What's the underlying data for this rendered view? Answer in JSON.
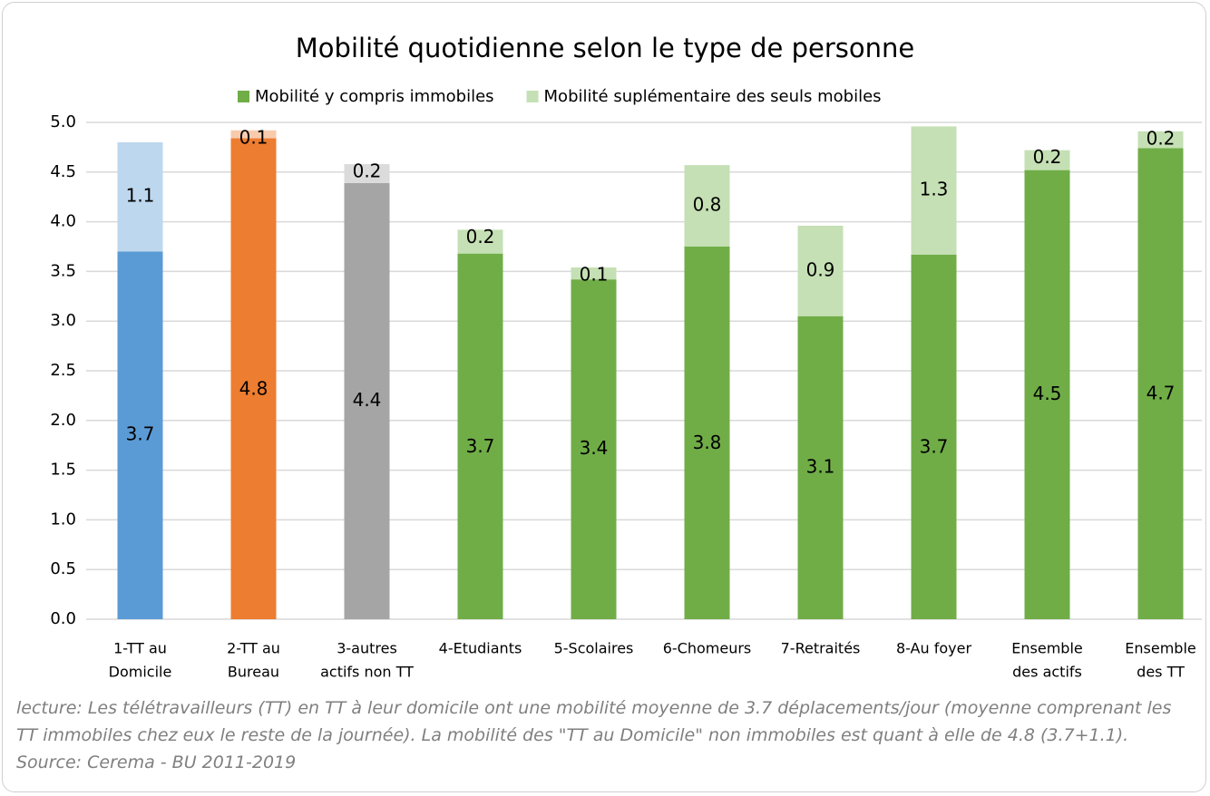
{
  "chart_data": {
    "type": "stacked_bar",
    "title": "Mobilité quotidienne selon le type de personne",
    "categories": [
      [
        "1-TT au",
        "Domicile"
      ],
      [
        "2-TT au",
        "Bureau"
      ],
      [
        "3-autres",
        "actifs non TT"
      ],
      [
        "4-Etudiants"
      ],
      [
        "5-Scolaires"
      ],
      [
        "6-Chomeurs"
      ],
      [
        "7-Retraités"
      ],
      [
        "8-Au foyer"
      ],
      [
        "Ensemble",
        "des actifs"
      ],
      [
        "Ensemble",
        "des TT"
      ]
    ],
    "series": [
      {
        "name": "Mobilité y compris immobiles",
        "color": "#70ad47",
        "colors": [
          "#5b9bd5",
          "#ed7d31",
          "#a5a5a5",
          "#70ad47",
          "#70ad47",
          "#70ad47",
          "#70ad47",
          "#70ad47",
          "#70ad47",
          "#70ad47"
        ],
        "values": [
          3.7,
          4.84,
          4.39,
          3.68,
          3.42,
          3.75,
          3.05,
          3.67,
          4.52,
          4.74
        ],
        "value_labels": [
          "3.7",
          "4.8",
          "4.4",
          "3.7",
          "3.4",
          "3.8",
          "3.1",
          "3.7",
          "4.5",
          "4.7"
        ]
      },
      {
        "name": "Mobilité suplémentaire des seuls mobiles",
        "color": "#c5e0b4",
        "colors": [
          "#bdd7ee",
          "#f8cbad",
          "#dbdbdb",
          "#c5e0b4",
          "#c5e0b4",
          "#c5e0b4",
          "#c5e0b4",
          "#c5e0b4",
          "#c5e0b4",
          "#c5e0b4"
        ],
        "values": [
          1.1,
          0.08,
          0.19,
          0.24,
          0.12,
          0.82,
          0.91,
          1.29,
          0.2,
          0.17
        ],
        "value_labels": [
          "1.1",
          "0.1",
          "0.2",
          "0.2",
          "0.1",
          "0.8",
          "0.9",
          "1.3",
          "0.2",
          "0.2"
        ]
      }
    ],
    "ylim": [
      0,
      5
    ],
    "yticks": [
      {
        "value": 0,
        "label": "0.0"
      },
      {
        "value": 0.5,
        "label": "0.5"
      },
      {
        "value": 1,
        "label": "1.0"
      },
      {
        "value": 1.5,
        "label": "1.5"
      },
      {
        "value": 2,
        "label": "2.0"
      },
      {
        "value": 2.5,
        "label": "2.5"
      },
      {
        "value": 3,
        "label": "3.0"
      },
      {
        "value": 3.5,
        "label": "3.5"
      },
      {
        "value": 4,
        "label": "4.0"
      },
      {
        "value": 4.5,
        "label": "4.5"
      },
      {
        "value": 5,
        "label": "5.0"
      }
    ],
    "grid": true,
    "legend": "top",
    "note": "lecture: Les télétravailleurs (TT) en TT à leur domicile ont une mobilité moyenne de 3.7 déplacements/jour (moyenne comprenant les TT immobiles chez eux le reste de la journée). La mobilité des \"TT au Domicile\" non immobiles est quant à elle de 4.8 (3.7+1.1).  Source: Cerema - BU 2011-2019"
  }
}
